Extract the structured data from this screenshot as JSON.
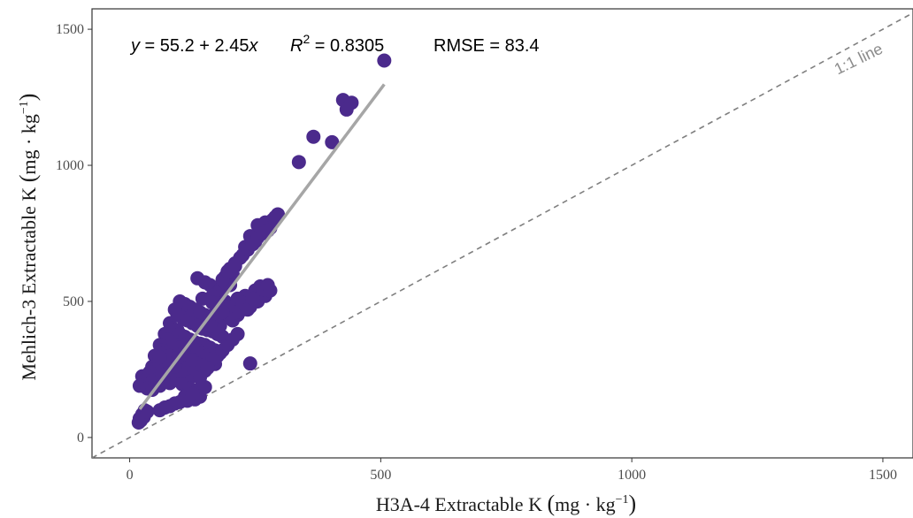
{
  "chart_data": {
    "type": "scatter",
    "title": "",
    "xlabel_prefix": "H3A-4 Extractable K ",
    "ylabel_prefix": "Mehlich-3 Extractable K ",
    "unit_open": "(",
    "unit_main": "mg · kg",
    "unit_exp": "−1",
    "unit_close": ")",
    "xlim": [
      -75,
      1560
    ],
    "ylim": [
      -75,
      1575
    ],
    "xticks": [
      0,
      500,
      1000,
      1500
    ],
    "yticks": [
      0,
      500,
      1000,
      1500
    ],
    "xtick_labels": [
      "0",
      "500",
      "1000",
      "1500"
    ],
    "ytick_labels": [
      "0",
      "500",
      "1000",
      "1500"
    ],
    "grid": false,
    "point_color": "#4b2a8c",
    "fit_color": "#a6a6a6",
    "ref_color": "#7f7f7f",
    "regression": {
      "intercept": 55.2,
      "slope": 2.45,
      "x_range": [
        20,
        507
      ]
    },
    "reference_line": {
      "slope": 1,
      "intercept": 0,
      "label": "1:1 line"
    },
    "annotation": {
      "eq_y": "y",
      "eq_rest": " = 55.2 + 2.45",
      "eq_x": "x",
      "r2_r": "R",
      "r2_exp": "2",
      "r2_rest": " = 0.8305",
      "rmse": "RMSE = 83.4"
    },
    "points": [
      [
        507,
        1385
      ],
      [
        425,
        1240
      ],
      [
        442,
        1230
      ],
      [
        432,
        1205
      ],
      [
        366,
        1105
      ],
      [
        403,
        1085
      ],
      [
        337,
        1012
      ],
      [
        240,
        272
      ],
      [
        295,
        820
      ],
      [
        285,
        800
      ],
      [
        270,
        790
      ],
      [
        255,
        780
      ],
      [
        280,
        770
      ],
      [
        260,
        760
      ],
      [
        240,
        740
      ],
      [
        250,
        720
      ],
      [
        230,
        700
      ],
      [
        220,
        660
      ],
      [
        210,
        640
      ],
      [
        200,
        620
      ],
      [
        205,
        600
      ],
      [
        190,
        590
      ],
      [
        260,
        555
      ],
      [
        250,
        540
      ],
      [
        270,
        520
      ],
      [
        255,
        500
      ],
      [
        240,
        480
      ],
      [
        225,
        470
      ],
      [
        215,
        450
      ],
      [
        205,
        430
      ],
      [
        135,
        585
      ],
      [
        150,
        570
      ],
      [
        160,
        560
      ],
      [
        170,
        550
      ],
      [
        180,
        545
      ],
      [
        175,
        530
      ],
      [
        165,
        520
      ],
      [
        145,
        510
      ],
      [
        100,
        500
      ],
      [
        110,
        490
      ],
      [
        120,
        480
      ],
      [
        130,
        470
      ],
      [
        140,
        460
      ],
      [
        150,
        450
      ],
      [
        160,
        445
      ],
      [
        170,
        440
      ],
      [
        180,
        430
      ],
      [
        90,
        470
      ],
      [
        95,
        450
      ],
      [
        105,
        440
      ],
      [
        115,
        430
      ],
      [
        125,
        420
      ],
      [
        135,
        410
      ],
      [
        145,
        400
      ],
      [
        155,
        395
      ],
      [
        165,
        390
      ],
      [
        175,
        380
      ],
      [
        185,
        370
      ],
      [
        80,
        420
      ],
      [
        85,
        400
      ],
      [
        95,
        395
      ],
      [
        100,
        380
      ],
      [
        110,
        370
      ],
      [
        120,
        360
      ],
      [
        130,
        350
      ],
      [
        140,
        345
      ],
      [
        150,
        340
      ],
      [
        160,
        330
      ],
      [
        170,
        320
      ],
      [
        180,
        310
      ],
      [
        70,
        380
      ],
      [
        75,
        360
      ],
      [
        85,
        350
      ],
      [
        90,
        340
      ],
      [
        100,
        330
      ],
      [
        110,
        320
      ],
      [
        120,
        310
      ],
      [
        130,
        300
      ],
      [
        140,
        295
      ],
      [
        150,
        290
      ],
      [
        160,
        280
      ],
      [
        170,
        270
      ],
      [
        60,
        340
      ],
      [
        65,
        320
      ],
      [
        70,
        310
      ],
      [
        80,
        300
      ],
      [
        90,
        290
      ],
      [
        100,
        280
      ],
      [
        110,
        270
      ],
      [
        120,
        265
      ],
      [
        130,
        260
      ],
      [
        140,
        250
      ],
      [
        150,
        245
      ],
      [
        50,
        300
      ],
      [
        55,
        280
      ],
      [
        60,
        270
      ],
      [
        70,
        260
      ],
      [
        80,
        250
      ],
      [
        90,
        240
      ],
      [
        100,
        235
      ],
      [
        110,
        230
      ],
      [
        125,
        225
      ],
      [
        140,
        220
      ],
      [
        45,
        260
      ],
      [
        50,
        250
      ],
      [
        40,
        240
      ],
      [
        35,
        230
      ],
      [
        25,
        225
      ],
      [
        30,
        210
      ],
      [
        40,
        200
      ],
      [
        55,
        215
      ],
      [
        65,
        230
      ],
      [
        75,
        220
      ],
      [
        20,
        190
      ],
      [
        35,
        180
      ],
      [
        45,
        175
      ],
      [
        60,
        190
      ],
      [
        80,
        200
      ],
      [
        95,
        210
      ],
      [
        105,
        195
      ],
      [
        120,
        180
      ],
      [
        135,
        175
      ],
      [
        150,
        185
      ],
      [
        140,
        150
      ],
      [
        130,
        140
      ],
      [
        115,
        135
      ],
      [
        100,
        130
      ],
      [
        90,
        125
      ],
      [
        80,
        115
      ],
      [
        70,
        110
      ],
      [
        60,
        100
      ],
      [
        110,
        150
      ],
      [
        125,
        160
      ],
      [
        30,
        100
      ],
      [
        25,
        85
      ],
      [
        20,
        70
      ],
      [
        18,
        55
      ],
      [
        22,
        62
      ],
      [
        28,
        75
      ],
      [
        35,
        95
      ],
      [
        190,
        500
      ],
      [
        200,
        480
      ],
      [
        210,
        460
      ],
      [
        195,
        440
      ],
      [
        180,
        410
      ],
      [
        170,
        400
      ],
      [
        160,
        410
      ],
      [
        185,
        460
      ],
      [
        175,
        480
      ],
      [
        165,
        495
      ],
      [
        230,
        520
      ],
      [
        215,
        510
      ],
      [
        225,
        495
      ],
      [
        235,
        470
      ],
      [
        245,
        510
      ],
      [
        265,
        545
      ],
      [
        275,
        560
      ],
      [
        280,
        540
      ],
      [
        200,
        560
      ],
      [
        190,
        570
      ],
      [
        185,
        580
      ],
      [
        195,
        610
      ],
      [
        210,
        630
      ],
      [
        225,
        670
      ],
      [
        235,
        690
      ],
      [
        245,
        710
      ],
      [
        255,
        735
      ],
      [
        265,
        750
      ],
      [
        275,
        760
      ],
      [
        290,
        810
      ],
      [
        115,
        340
      ],
      [
        125,
        330
      ],
      [
        135,
        320
      ],
      [
        145,
        310
      ],
      [
        155,
        300
      ],
      [
        165,
        290
      ],
      [
        175,
        300
      ],
      [
        185,
        320
      ],
      [
        195,
        340
      ],
      [
        205,
        360
      ],
      [
        215,
        380
      ],
      [
        105,
        270
      ],
      [
        115,
        255
      ],
      [
        100,
        245
      ],
      [
        90,
        260
      ],
      [
        80,
        270
      ],
      [
        70,
        285
      ],
      [
        60,
        295
      ],
      [
        125,
        285
      ],
      [
        135,
        270
      ],
      [
        145,
        265
      ],
      [
        155,
        255
      ]
    ]
  }
}
